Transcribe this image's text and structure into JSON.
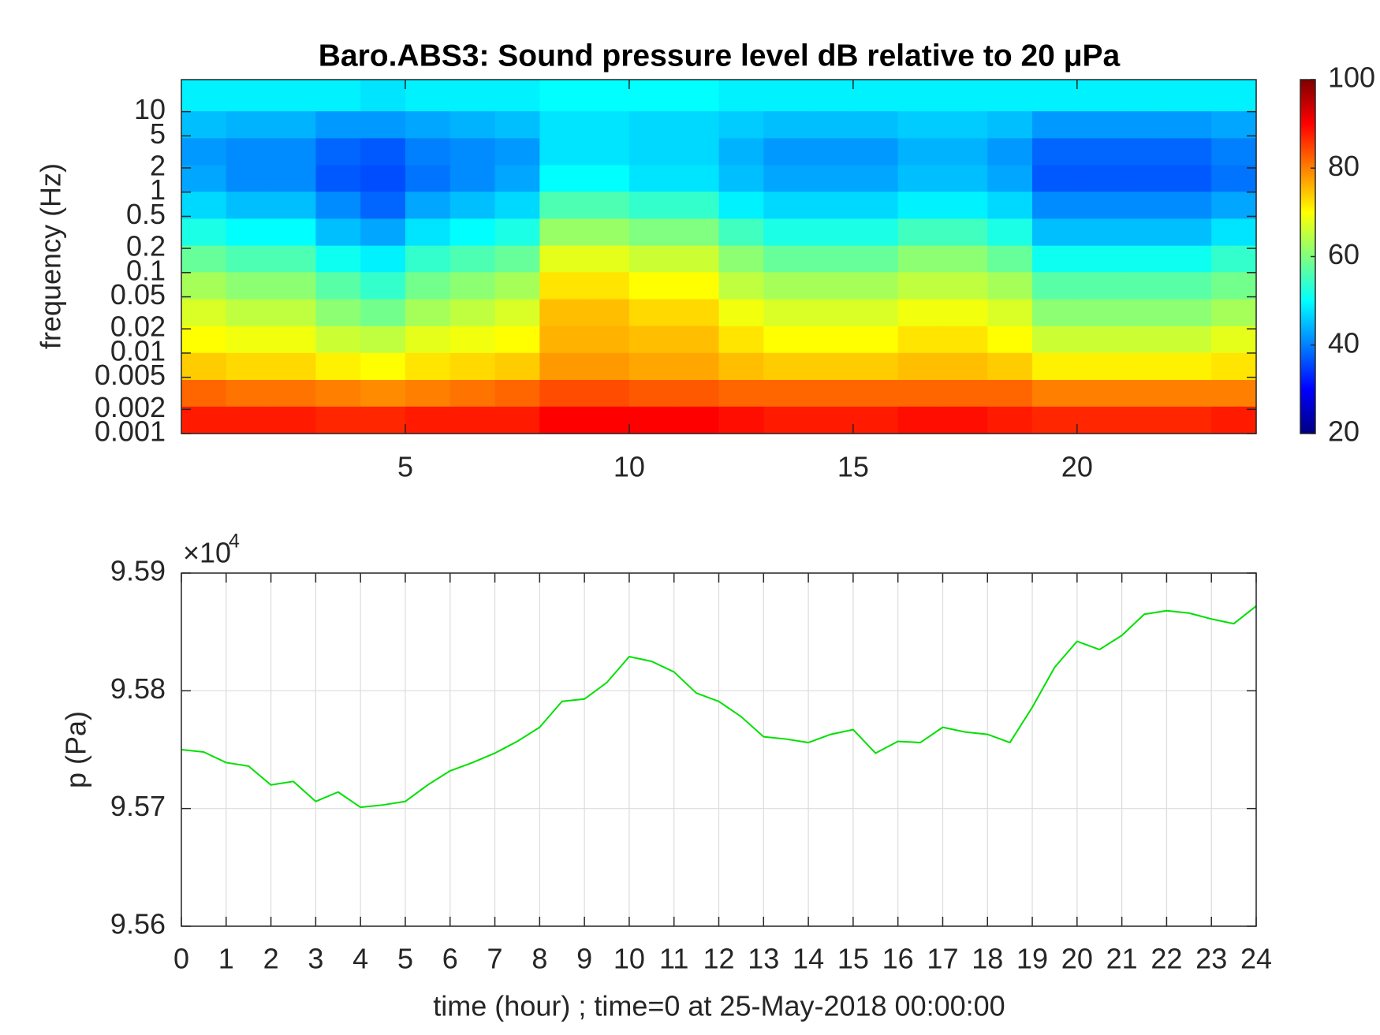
{
  "chart_data": [
    {
      "type": "heatmap",
      "title": "Baro.ABS3: Sound pressure level dB relative to 20 μPa",
      "ylabel": "frequency (Hz)",
      "x": [
        0.5,
        1.5,
        2.5,
        3.5,
        4.5,
        5.5,
        6.5,
        7.5,
        8.5,
        9.5,
        10.5,
        11.5,
        12.5,
        13.5,
        14.5,
        15.5,
        16.5,
        17.5,
        18.5,
        19.5,
        20.5,
        21.5,
        22.5,
        23.5
      ],
      "y": [
        0.0015,
        0.0032,
        0.0069,
        0.015,
        0.032,
        0.07,
        0.15,
        0.32,
        0.7,
        1.5,
        3.2,
        7,
        15
      ],
      "z": [
        [
          88,
          88,
          88,
          87,
          87,
          88,
          88,
          88,
          90,
          90,
          90,
          90,
          89,
          88,
          88,
          88,
          89,
          89,
          88,
          87,
          87,
          87,
          87,
          88
        ],
        [
          82,
          81,
          81,
          80,
          79,
          80,
          81,
          82,
          84,
          84,
          83,
          83,
          82,
          82,
          82,
          82,
          82,
          82,
          82,
          80,
          80,
          80,
          80,
          80
        ],
        [
          74,
          73,
          73,
          71,
          70,
          72,
          73,
          74,
          78,
          78,
          77,
          77,
          75,
          74,
          74,
          74,
          75,
          75,
          74,
          71,
          71,
          71,
          71,
          72
        ],
        [
          70,
          69,
          69,
          66,
          65,
          68,
          69,
          70,
          76,
          76,
          75,
          75,
          72,
          70,
          70,
          70,
          72,
          72,
          70,
          66,
          66,
          66,
          66,
          68
        ],
        [
          67,
          65,
          65,
          61,
          59,
          63,
          65,
          67,
          75,
          75,
          73,
          73,
          69,
          67,
          67,
          67,
          69,
          69,
          67,
          61,
          61,
          61,
          61,
          63
        ],
        [
          63,
          61,
          61,
          57,
          54,
          59,
          61,
          63,
          72,
          72,
          70,
          70,
          65,
          63,
          63,
          63,
          65,
          65,
          63,
          57,
          57,
          57,
          57,
          59
        ],
        [
          58,
          56,
          56,
          51,
          49,
          54,
          56,
          58,
          68,
          68,
          66,
          66,
          61,
          58,
          58,
          58,
          61,
          61,
          58,
          51,
          51,
          51,
          51,
          54
        ],
        [
          52,
          50,
          50,
          45,
          43,
          48,
          50,
          52,
          62,
          62,
          60,
          60,
          55,
          52,
          52,
          52,
          55,
          55,
          52,
          45,
          45,
          45,
          45,
          48
        ],
        [
          47,
          45,
          45,
          41,
          38,
          43,
          45,
          47,
          56,
          56,
          54,
          54,
          49,
          47,
          47,
          47,
          49,
          49,
          47,
          41,
          41,
          41,
          41,
          43
        ],
        [
          43,
          41,
          41,
          37,
          36,
          39,
          41,
          43,
          50,
          50,
          48,
          48,
          45,
          43,
          43,
          43,
          45,
          45,
          43,
          37,
          37,
          37,
          37,
          39
        ],
        [
          42,
          41,
          41,
          38,
          37,
          40,
          41,
          42,
          48,
          48,
          47,
          47,
          44,
          42,
          42,
          42,
          44,
          44,
          42,
          38,
          38,
          38,
          38,
          40
        ],
        [
          45,
          44,
          44,
          42,
          42,
          43,
          44,
          45,
          48,
          48,
          47,
          47,
          46,
          45,
          45,
          45,
          46,
          46,
          45,
          42,
          42,
          42,
          42,
          43
        ],
        [
          49,
          49,
          49,
          49,
          48,
          49,
          49,
          49,
          50,
          50,
          50,
          50,
          49,
          49,
          49,
          49,
          49,
          49,
          49,
          49,
          49,
          49,
          49,
          49
        ]
      ],
      "xlim": [
        0,
        24
      ],
      "xticks": [
        5,
        10,
        15,
        20
      ],
      "ylim": [
        0.001,
        25
      ],
      "log_y": true,
      "yticks": [
        0.001,
        0.002,
        0.005,
        0.01,
        0.02,
        0.05,
        0.1,
        0.2,
        0.5,
        1,
        2,
        5,
        10
      ],
      "colormap": "jet",
      "colorbar": {
        "lim": [
          20,
          100
        ],
        "ticks": [
          20,
          40,
          60,
          80,
          100
        ]
      }
    },
    {
      "type": "line",
      "ylabel": "p (Pa)",
      "xlabel": "time (hour) ; time=0 at 25-May-2018 00:00:00",
      "y_multiplier": "×10",
      "y_multiplier_exponent": "4",
      "x": [
        0,
        0.5,
        1,
        1.5,
        2,
        2.5,
        3,
        3.5,
        4,
        4.5,
        5,
        5.5,
        6,
        6.5,
        7,
        7.5,
        8,
        8.5,
        9,
        9.5,
        10,
        10.5,
        11,
        11.5,
        12,
        12.5,
        13,
        13.5,
        14,
        14.5,
        15,
        15.5,
        16,
        16.5,
        17,
        17.5,
        18,
        18.5,
        19,
        19.5,
        20,
        20.5,
        21,
        21.5,
        22,
        22.5,
        23,
        23.5,
        24
      ],
      "values": [
        95750,
        95748,
        95739,
        95736,
        95720,
        95723,
        95706,
        95714,
        95701,
        95703,
        95706,
        95720,
        95732,
        95739,
        95747,
        95757,
        95769,
        95791,
        95793,
        95807,
        95829,
        95825,
        95816,
        95798,
        95791,
        95778,
        95761,
        95759,
        95756,
        95763,
        95767,
        95747,
        95757,
        95756,
        95769,
        95765,
        95763,
        95756,
        95786,
        95820,
        95842,
        95835,
        95847,
        95865,
        95868,
        95866,
        95861,
        95857,
        95872
      ],
      "color": "#00e000",
      "xlim": [
        0,
        24
      ],
      "xticks": [
        0,
        1,
        2,
        3,
        4,
        5,
        6,
        7,
        8,
        9,
        10,
        11,
        12,
        13,
        14,
        15,
        16,
        17,
        18,
        19,
        20,
        21,
        22,
        23,
        24
      ],
      "ylim": [
        95600,
        95900
      ],
      "yticks": [
        {
          "value": 95600,
          "label": "9.56"
        },
        {
          "value": 95700,
          "label": "9.57"
        },
        {
          "value": 95800,
          "label": "9.58"
        },
        {
          "value": 95900,
          "label": "9.59"
        }
      ],
      "grid": true
    }
  ]
}
